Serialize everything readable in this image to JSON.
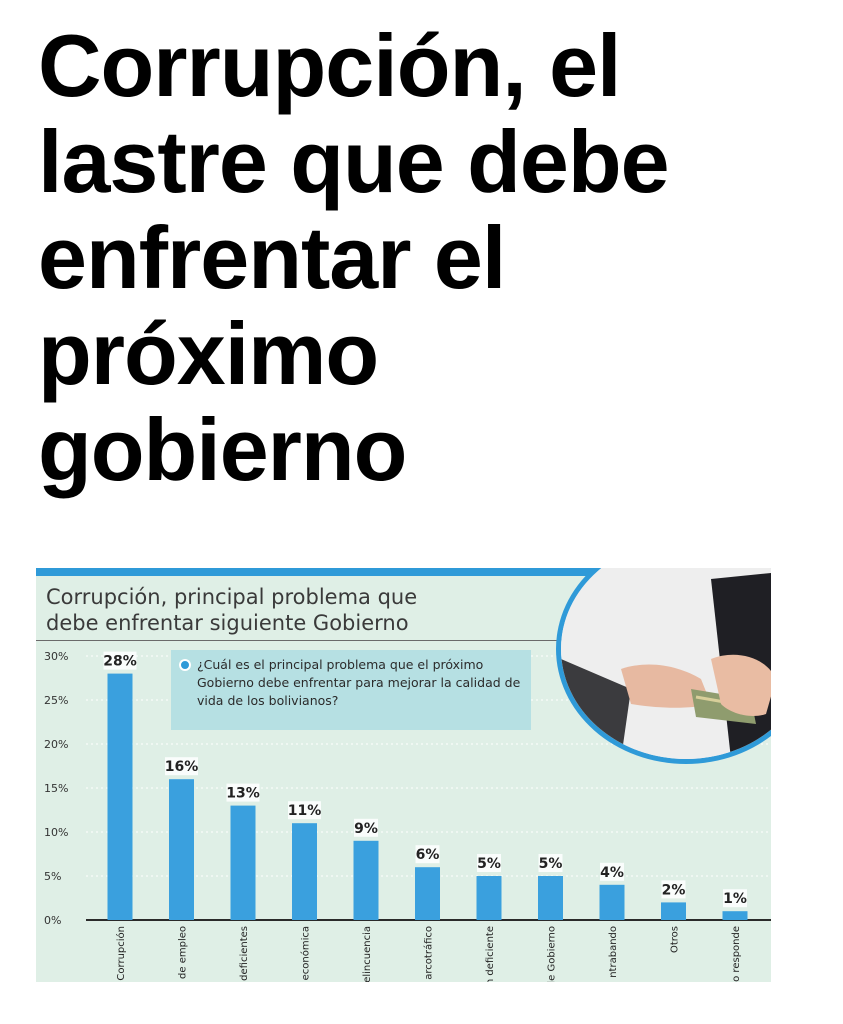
{
  "headline": {
    "lines": [
      "Corrupción, el",
      "lastre que debe",
      "enfrentar el",
      "próximo",
      "gobierno"
    ]
  },
  "chart_data": {
    "type": "bar",
    "title_lines": [
      "Corrupción, principal problema que",
      "debe enfrentar siguiente Gobierno"
    ],
    "question": "¿Cuál es el principal problema que el próximo Gobierno debe enfrentar para mejorar la calidad de vida de los bolivianos?",
    "categories": [
      "Corrupción",
      "de empleo",
      "lud deficientes",
      "económica",
      "elincuencia",
      "arcotráfico",
      "n deficiente",
      "de Gobierno",
      "ntrabando",
      "Otros",
      "o responde"
    ],
    "values": [
      28,
      16,
      13,
      11,
      9,
      6,
      5,
      5,
      4,
      2,
      1
    ],
    "data_labels": [
      "28%",
      "16%",
      "13%",
      "11%",
      "9%",
      "6%",
      "5%",
      "5%",
      "4%",
      "2%",
      "1%"
    ],
    "yticks": [
      0,
      5,
      10,
      15,
      20,
      25,
      30
    ],
    "ytick_labels": [
      "0%",
      "5%",
      "10%",
      "15%",
      "20%",
      "25%",
      "30%"
    ],
    "ylim": [
      0,
      30
    ],
    "grid": true,
    "bar_color": "#3aa0de",
    "label_bg": "#ffffff",
    "background": "#dfefe6"
  }
}
